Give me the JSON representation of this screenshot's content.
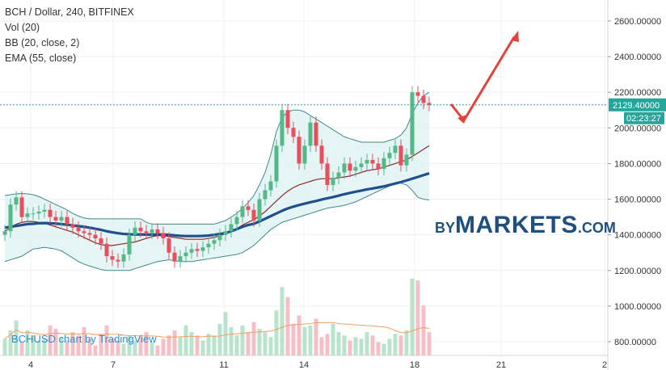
{
  "legend": {
    "title": "BCH / Dollar, 240, BITFINEX",
    "vol": "Vol (20)",
    "bb": "BB (20, close, 2)",
    "ema": "EMA (55, close)"
  },
  "watermark": "BCHUSD chart by TradingView",
  "brand": {
    "by": "BY",
    "name": "MARKETS",
    "tld": ".COM"
  },
  "price_label": "2129.40000",
  "countdown_label": "02:23:27",
  "colors": {
    "up": "#53b987",
    "down": "#eb4d5c",
    "ema": "#1f4f8c",
    "bb_mid": "#8c2b2b",
    "bb_band": "#3f8a8a",
    "bb_fill": "#dff1f1",
    "arrow": "#e8403a",
    "price_line": "#26a69a",
    "vol_ma": "#f0a060",
    "brand": "#1f4f7c"
  },
  "chart_data": {
    "type": "candlestick",
    "symbol": "BCH / Dollar",
    "interval": "240",
    "exchange": "BITFINEX",
    "x_tick_labels": [
      "4",
      "7",
      "11",
      "14",
      "18",
      "21",
      "2"
    ],
    "y_tick_labels": [
      "800.00000",
      "1000.00000",
      "1200.00000",
      "1400.00000",
      "1600.00000",
      "1800.00000",
      "2000.00000",
      "2200.00000",
      "2400.00000",
      "2600.00000"
    ],
    "ylim": [
      720,
      2720
    ],
    "last_price": 2129.4,
    "close": [
      1420,
      1570,
      1610,
      1500,
      1520,
      1520,
      1530,
      1540,
      1500,
      1480,
      1500,
      1460,
      1440,
      1420,
      1410,
      1400,
      1380,
      1350,
      1280,
      1260,
      1250,
      1290,
      1400,
      1440,
      1420,
      1410,
      1430,
      1410,
      1380,
      1300,
      1250,
      1280,
      1300,
      1320,
      1310,
      1330,
      1350,
      1370,
      1400,
      1420,
      1460,
      1500,
      1560,
      1540,
      1480,
      1600,
      1650,
      1700,
      1900,
      2100,
      2000,
      1950,
      1800,
      1900,
      2030,
      1900,
      1800,
      1680,
      1720,
      1750,
      1800,
      1760,
      1780,
      1800,
      1820,
      1800,
      1770,
      1830,
      1860,
      1900,
      1790,
      1850,
      2200,
      2180,
      2140,
      2129
    ],
    "open": [
      1400,
      1420,
      1570,
      1610,
      1500,
      1520,
      1520,
      1530,
      1540,
      1500,
      1480,
      1500,
      1460,
      1440,
      1420,
      1410,
      1400,
      1380,
      1350,
      1280,
      1260,
      1250,
      1290,
      1400,
      1440,
      1420,
      1410,
      1430,
      1410,
      1380,
      1300,
      1250,
      1280,
      1300,
      1320,
      1310,
      1330,
      1350,
      1370,
      1400,
      1420,
      1460,
      1500,
      1560,
      1540,
      1480,
      1600,
      1650,
      1700,
      1900,
      2100,
      2000,
      1950,
      1800,
      1900,
      2030,
      1900,
      1800,
      1680,
      1720,
      1750,
      1800,
      1760,
      1780,
      1800,
      1820,
      1800,
      1770,
      1830,
      1860,
      1900,
      1790,
      1850,
      2200,
      2180,
      2140
    ],
    "bb_upper": [
      1620,
      1625,
      1630,
      1632,
      1630,
      1625,
      1615,
      1600,
      1585,
      1570,
      1555,
      1540,
      1520,
      1505,
      1495,
      1490,
      1490,
      1490,
      1490,
      1490,
      1490,
      1490,
      1490,
      1490,
      1490,
      1470,
      1460,
      1460,
      1460,
      1460,
      1460,
      1460,
      1460,
      1460,
      1460,
      1460,
      1460,
      1460,
      1470,
      1480,
      1500,
      1520,
      1550,
      1580,
      1620,
      1680,
      1750,
      1850,
      1980,
      2060,
      2090,
      2100,
      2100,
      2090,
      2070,
      2050,
      2030,
      2010,
      1990,
      1970,
      1950,
      1940,
      1930,
      1920,
      1920,
      1920,
      1920,
      1920,
      1930,
      1940,
      1960,
      2000,
      2080,
      2140,
      2180,
      2200
    ],
    "bb_middle": [
      1420,
      1440,
      1460,
      1470,
      1475,
      1475,
      1470,
      1465,
      1455,
      1445,
      1435,
      1425,
      1415,
      1400,
      1385,
      1370,
      1355,
      1345,
      1340,
      1340,
      1345,
      1350,
      1355,
      1360,
      1370,
      1380,
      1390,
      1395,
      1395,
      1390,
      1385,
      1380,
      1375,
      1375,
      1375,
      1375,
      1380,
      1385,
      1395,
      1405,
      1420,
      1435,
      1455,
      1470,
      1485,
      1505,
      1530,
      1560,
      1590,
      1620,
      1645,
      1665,
      1680,
      1690,
      1700,
      1710,
      1715,
      1715,
      1715,
      1720,
      1725,
      1730,
      1740,
      1750,
      1760,
      1765,
      1770,
      1780,
      1790,
      1800,
      1810,
      1820,
      1840,
      1860,
      1880,
      1900
    ],
    "bb_lower": [
      1250,
      1260,
      1270,
      1280,
      1300,
      1320,
      1325,
      1330,
      1325,
      1320,
      1310,
      1290,
      1270,
      1250,
      1235,
      1225,
      1215,
      1205,
      1200,
      1200,
      1200,
      1200,
      1200,
      1210,
      1220,
      1230,
      1240,
      1250,
      1255,
      1260,
      1255,
      1250,
      1250,
      1250,
      1255,
      1260,
      1265,
      1270,
      1275,
      1280,
      1285,
      1290,
      1300,
      1320,
      1340,
      1370,
      1400,
      1430,
      1450,
      1470,
      1480,
      1490,
      1500,
      1510,
      1520,
      1530,
      1540,
      1550,
      1555,
      1560,
      1565,
      1575,
      1585,
      1600,
      1615,
      1630,
      1645,
      1660,
      1675,
      1690,
      1690,
      1680,
      1650,
      1610,
      1600,
      1595
    ],
    "ema55": [
      1440,
      1445,
      1450,
      1455,
      1460,
      1462,
      1465,
      1466,
      1465,
      1463,
      1460,
      1457,
      1453,
      1449,
      1445,
      1440,
      1434,
      1428,
      1420,
      1414,
      1409,
      1405,
      1403,
      1402,
      1402,
      1401,
      1401,
      1402,
      1402,
      1400,
      1397,
      1394,
      1393,
      1393,
      1393,
      1394,
      1396,
      1400,
      1405,
      1410,
      1420,
      1432,
      1445,
      1455,
      1462,
      1475,
      1490,
      1505,
      1520,
      1535,
      1548,
      1558,
      1567,
      1575,
      1583,
      1590,
      1598,
      1605,
      1612,
      1620,
      1628,
      1635,
      1642,
      1648,
      1655,
      1660,
      1666,
      1672,
      1680,
      1688,
      1696,
      1705,
      1715,
      1725,
      1735,
      1745
    ],
    "volume": [
      1,
      1.5,
      2.1,
      0.8,
      1.5,
      1.2,
      0.9,
      1,
      1.8,
      1.6,
      1.1,
      0.9,
      1.4,
      1.2,
      1.7,
      1,
      0.6,
      1.3,
      1.8,
      1,
      0.9,
      0.7,
      1.2,
      0.9,
      1.1,
      1.4,
      0.8,
      0.6,
      1,
      1.2,
      1.5,
      1.1,
      1.8,
      1.4,
      1.2,
      0.9,
      1.3,
      1.2,
      1.9,
      2.6,
      1.7,
      1.2,
      1.8,
      1.4,
      2,
      1.6,
      1.4,
      1.1,
      2.7,
      4.1,
      3.5,
      1.9,
      2.4,
      1.7,
      1.8,
      2.2,
      1.1,
      1.3,
      1.9,
      1.4,
      1.2,
      0.9,
      1.1,
      1,
      1.4,
      1.2,
      0.8,
      0.7,
      1,
      1.3,
      1.2,
      1.5,
      4.6,
      4.5,
      3.0,
      1.4
    ]
  }
}
